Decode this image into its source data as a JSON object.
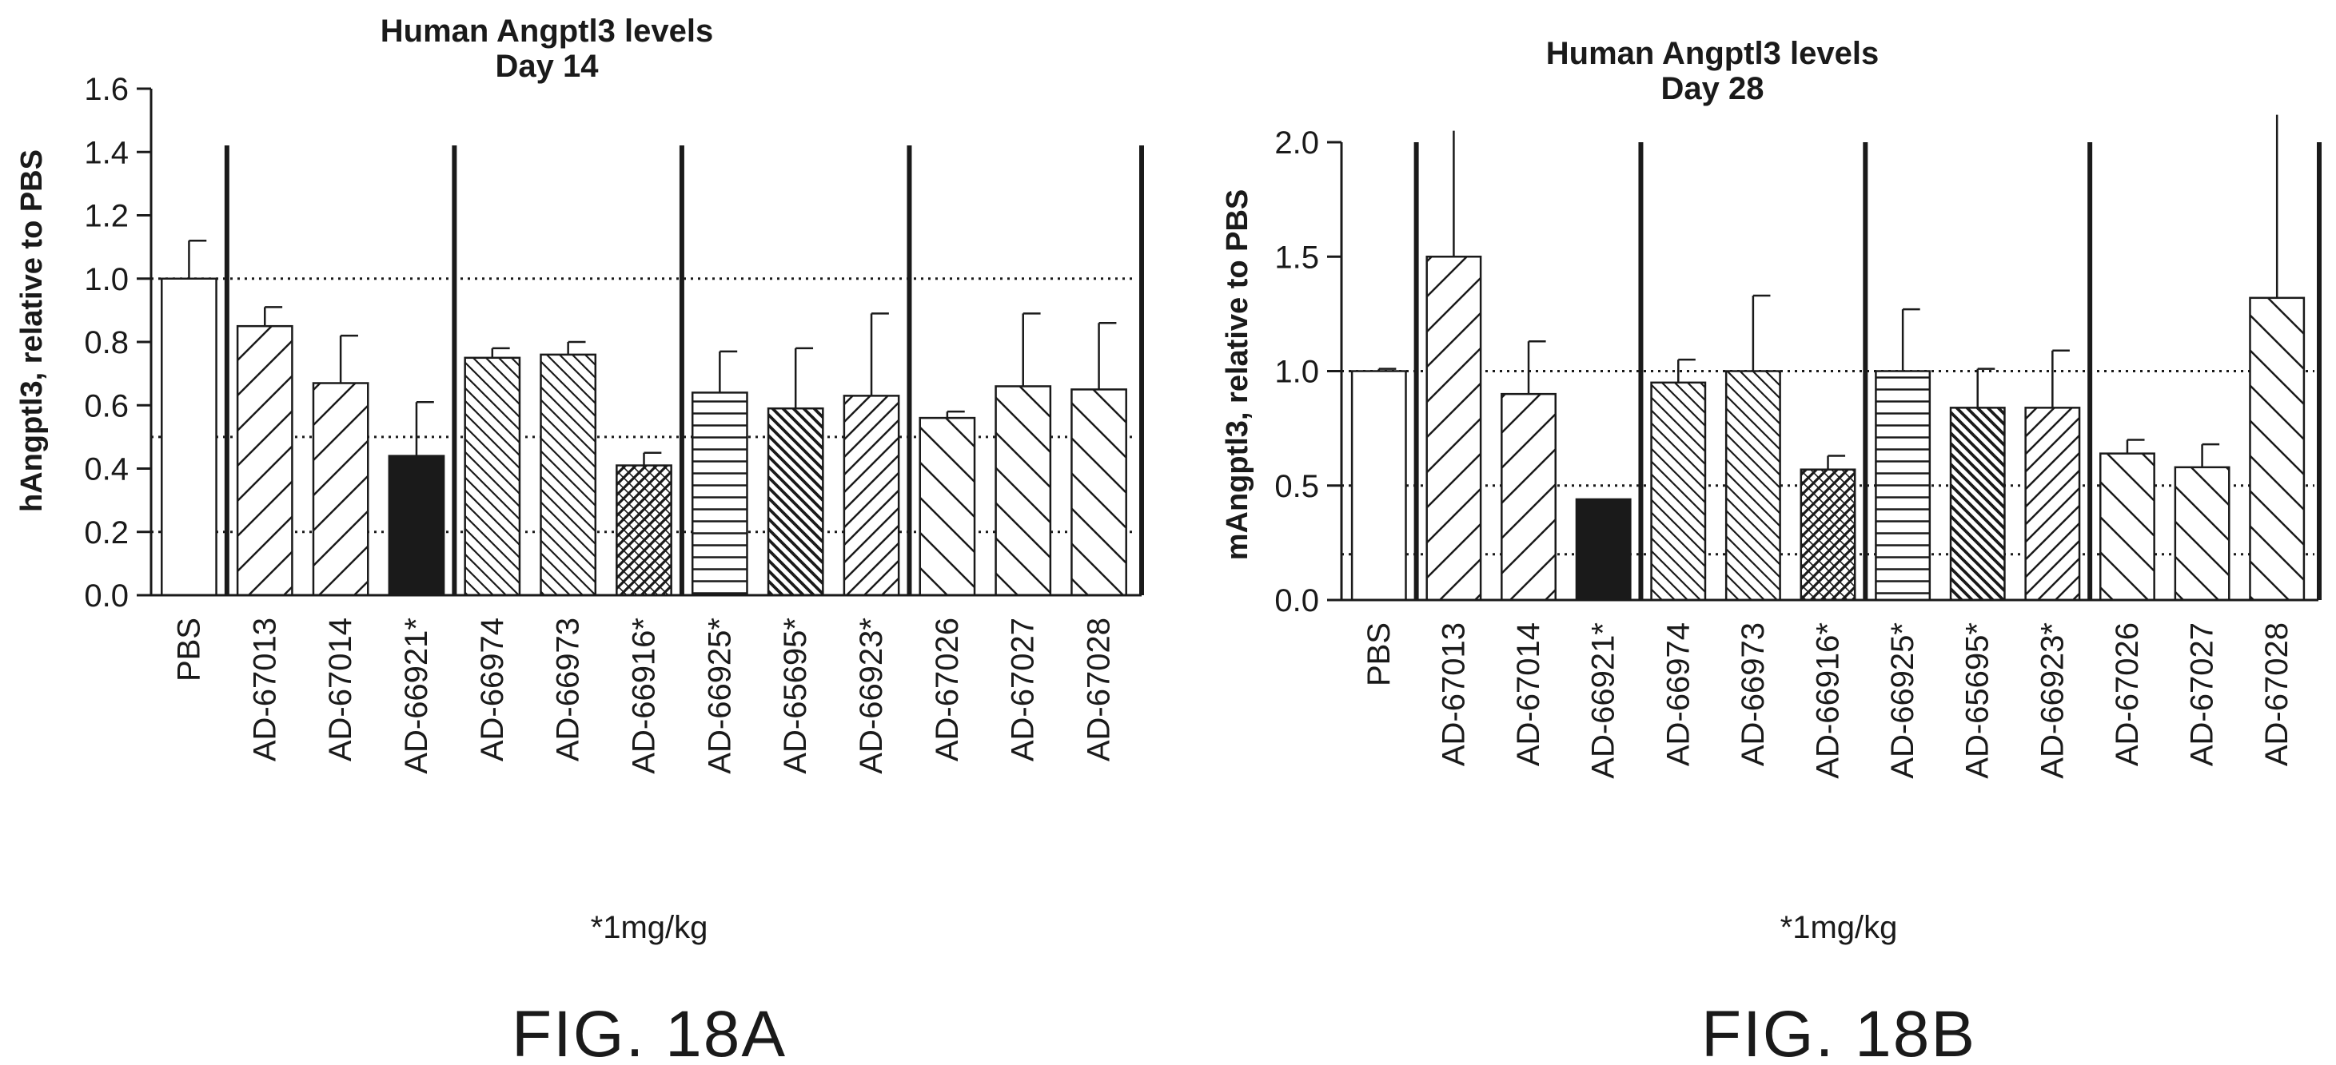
{
  "chart_data": [
    {
      "type": "bar",
      "title": "Human Angptl3 levels",
      "subtitle": "Day 14",
      "ylabel": "hAngptl3, relative to PBS",
      "xlabel": "",
      "ylim": [
        0,
        1.6
      ],
      "yticks": [
        "0.0",
        "0.2",
        "0.4",
        "0.6",
        "0.8",
        "1.0",
        "1.2",
        "1.4",
        "1.6"
      ],
      "yticks_values": [
        0,
        0.2,
        0.4,
        0.6,
        0.8,
        1.0,
        1.2,
        1.4,
        1.6
      ],
      "categories": [
        "PBS",
        "AD-67013",
        "AD-67014",
        "AD-66921*",
        "AD-66974",
        "AD-66973",
        "AD-66916*",
        "AD-66925*",
        "AD-65695*",
        "AD-66923*",
        "AD-67026",
        "AD-67027",
        "AD-67028"
      ],
      "values": [
        1.0,
        0.85,
        0.67,
        0.44,
        0.75,
        0.76,
        0.41,
        0.64,
        0.59,
        0.63,
        0.56,
        0.66,
        0.65
      ],
      "errors": [
        0.12,
        0.06,
        0.15,
        0.17,
        0.03,
        0.04,
        0.04,
        0.13,
        0.19,
        0.26,
        0.02,
        0.23,
        0.21
      ],
      "patterns": [
        "none",
        "wide-diag-up",
        "wide-diag-up",
        "solid",
        "dense-diag-down",
        "dense-diag-down",
        "cross-dense",
        "horizontal",
        "dense-diag-down-bold",
        "diag-up",
        "wide-diag-down",
        "wide-diag-down",
        "wide-diag-down"
      ],
      "reference_lines": [
        1.0,
        0.5,
        0.2
      ],
      "grid": false,
      "footnote": "*1mg/kg",
      "figure_label": "FIG. 18A"
    },
    {
      "type": "bar",
      "title": "Human Angptl3 levels",
      "subtitle": "Day 28",
      "ylabel": "mAngptl3, relative to PBS",
      "xlabel": "",
      "ylim": [
        0,
        2.0
      ],
      "yticks": [
        "0.0",
        "0.5",
        "1.0",
        "1.5",
        "2.0"
      ],
      "yticks_values": [
        0,
        0.5,
        1.0,
        1.5,
        2.0
      ],
      "categories": [
        "PBS",
        "AD-67013",
        "AD-67014",
        "AD-66921*",
        "AD-66974",
        "AD-66973",
        "AD-66916*",
        "AD-66925*",
        "AD-65695*",
        "AD-66923*",
        "AD-67026",
        "AD-67027",
        "AD-67028"
      ],
      "values": [
        1.0,
        1.5,
        0.9,
        0.44,
        0.95,
        1.0,
        0.57,
        1.0,
        0.84,
        0.84,
        0.64,
        0.58,
        1.32
      ],
      "errors": [
        0.01,
        0.55,
        0.23,
        0.0,
        0.1,
        0.33,
        0.06,
        0.27,
        0.17,
        0.25,
        0.06,
        0.1,
        0.8
      ],
      "patterns": [
        "none",
        "wide-diag-up",
        "wide-diag-up",
        "solid",
        "dense-diag-down",
        "dense-diag-down",
        "cross-dense",
        "horizontal",
        "dense-diag-down-bold",
        "diag-up",
        "wide-diag-down",
        "wide-diag-down",
        "wide-diag-down"
      ],
      "reference_lines": [
        1.0,
        0.5,
        0.2
      ],
      "grid": false,
      "footnote": "*1mg/kg",
      "figure_label": "FIG. 18B"
    }
  ]
}
